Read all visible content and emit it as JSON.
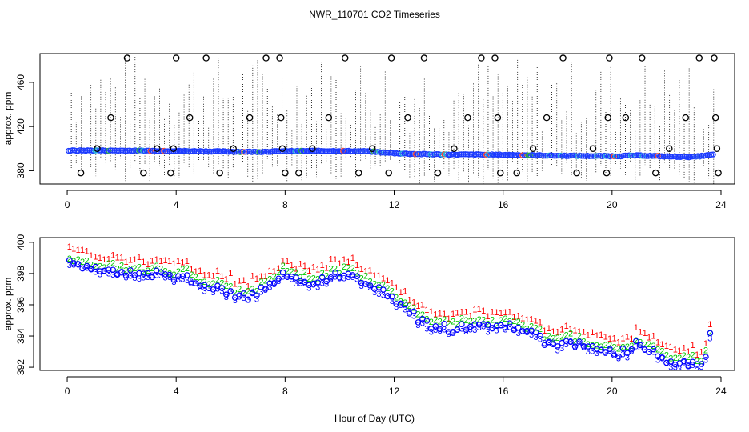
{
  "title": "NWR_110701  CO2 Timeseries",
  "xlabel": "Hour of Day (UTC)",
  "chart_data": [
    {
      "type": "scatter",
      "name": "raw-panel",
      "ylabel": "approx. ppm",
      "xlim": [
        -1,
        24.5
      ],
      "ylim": [
        368,
        486
      ],
      "x_ticks": [
        0,
        4,
        8,
        12,
        16,
        20,
        24
      ],
      "x_tick_labels": [
        "0",
        "4",
        "8",
        "12",
        "16",
        "20",
        "24"
      ],
      "y_ticks": [
        380,
        420,
        460
      ],
      "y_tick_labels": [
        "380",
        "420",
        "460"
      ],
      "baseline": {
        "x": [
          0.1,
          1,
          2,
          3,
          4,
          5,
          6,
          7,
          8,
          9,
          10,
          11,
          12,
          13,
          14,
          15,
          16,
          17,
          18,
          19,
          20,
          21,
          22,
          23,
          23.7
        ],
        "y": [
          398.2,
          398.3,
          398.2,
          398.1,
          397.9,
          397.6,
          397.3,
          397.1,
          397.7,
          397.9,
          397.9,
          397.6,
          395.8,
          395.0,
          394.7,
          394.6,
          394.4,
          394.0,
          393.6,
          393.4,
          393.2,
          393.8,
          392.9,
          392.5,
          394.5
        ]
      },
      "outliers": {
        "x": [
          0.5,
          1.1,
          1.6,
          2.2,
          2.8,
          3.3,
          3.8,
          3.9,
          4.0,
          4.5,
          5.1,
          5.6,
          6.1,
          6.7,
          7.3,
          7.8,
          7.85,
          7.9,
          8.0,
          8.5,
          9.0,
          9.6,
          10.2,
          10.7,
          11.2,
          11.8,
          11.9,
          12.5,
          13.1,
          13.6,
          14.2,
          14.7,
          15.2,
          15.7,
          15.8,
          15.9,
          16.5,
          17.1,
          17.6,
          18.2,
          18.7,
          19.3,
          19.8,
          19.85,
          19.9,
          20.5,
          21.1,
          21.6,
          22.1,
          22.7,
          23.2,
          23.75,
          23.8,
          23.85,
          23.9
        ],
        "y": [
          378,
          400,
          428,
          482,
          378,
          400,
          378,
          400,
          482,
          428,
          482,
          378,
          400,
          428,
          482,
          482,
          428,
          400,
          378,
          378,
          400,
          428,
          482,
          378,
          400,
          378,
          482,
          428,
          482,
          378,
          400,
          428,
          482,
          482,
          428,
          378,
          378,
          400,
          428,
          482,
          378,
          400,
          378,
          428,
          482,
          428,
          482,
          378,
          400,
          428,
          482,
          482,
          428,
          400,
          378
        ]
      }
    },
    {
      "type": "scatter",
      "name": "smoothed-panel",
      "ylabel": "approx. ppm",
      "xlim": [
        -1,
        24.5
      ],
      "ylim": [
        391.8,
        400.3
      ],
      "x_ticks": [
        0,
        4,
        8,
        12,
        16,
        20,
        24
      ],
      "x_tick_labels": [
        "0",
        "4",
        "8",
        "12",
        "16",
        "20",
        "24"
      ],
      "y_ticks": [
        392,
        394,
        396,
        398,
        400
      ],
      "y_tick_labels": [
        "392",
        "394",
        "396",
        "398",
        "400"
      ],
      "series": [
        {
          "name": "1",
          "symbol": "1",
          "color": "#ff0000",
          "offset": 0.55
        },
        {
          "name": "2",
          "symbol": "2",
          "color": "#00c800",
          "offset": 0.0
        },
        {
          "name": "3",
          "symbol": "3",
          "color": "#0000ff",
          "offset": -0.5
        },
        {
          "name": "o",
          "symbol": "o",
          "color": "#0000ff",
          "offset": -0.35
        }
      ],
      "trend": {
        "x": [
          0,
          0.5,
          1,
          1.5,
          2,
          2.5,
          3,
          3.5,
          4,
          4.5,
          5,
          5.5,
          6,
          6.5,
          7,
          7.5,
          8,
          8.5,
          9,
          9.5,
          10,
          10.5,
          11,
          11.5,
          12,
          12.5,
          13,
          13.5,
          14,
          14.5,
          15,
          15.5,
          16,
          16.5,
          17,
          17.5,
          18,
          18.5,
          19,
          19.5,
          20,
          20.5,
          21,
          21.5,
          22,
          22.5,
          23,
          23.3,
          23.5,
          23.7
        ],
        "y": [
          399.0,
          399.0,
          398.8,
          398.5,
          398.4,
          398.3,
          398.2,
          398.4,
          398.2,
          398.0,
          397.6,
          397.5,
          397.2,
          396.8,
          397.2,
          397.7,
          398.4,
          398.0,
          397.8,
          398.0,
          398.3,
          398.4,
          397.6,
          397.4,
          396.8,
          396.0,
          395.3,
          395.0,
          394.9,
          395.0,
          394.9,
          395.0,
          395.0,
          394.8,
          394.6,
          394.1,
          393.8,
          393.9,
          393.7,
          393.5,
          393.3,
          393.3,
          393.9,
          393.2,
          392.9,
          392.6,
          392.6,
          392.5,
          393.6,
          395.0
        ]
      }
    }
  ]
}
